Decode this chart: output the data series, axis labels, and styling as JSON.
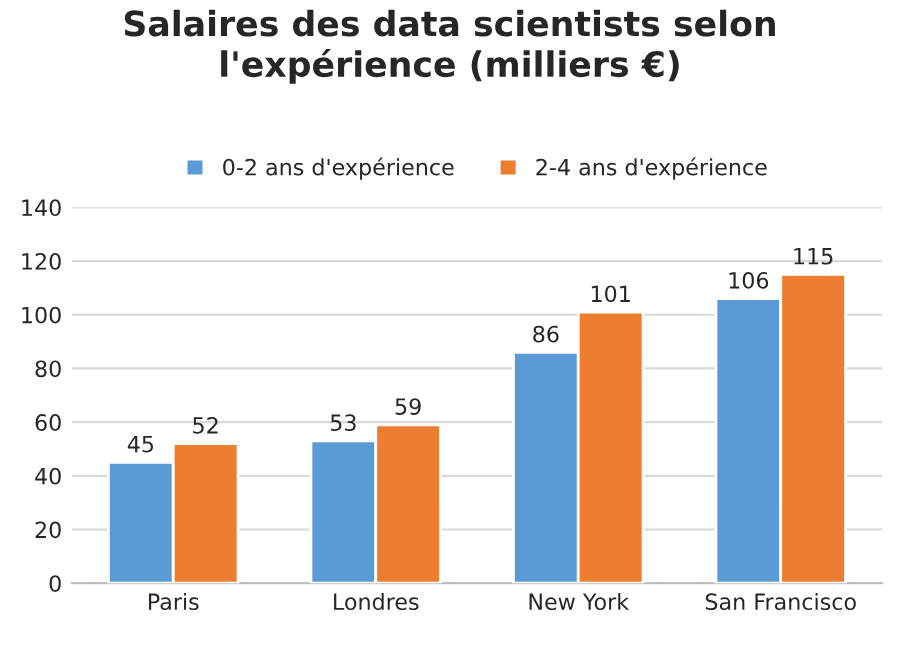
{
  "chart_data": {
    "type": "bar",
    "title": "Salaires des data scientists selon l'expérience (milliers €)",
    "categories": [
      "Paris",
      "Londres",
      "New York",
      "San Francisco"
    ],
    "series": [
      {
        "name": "0-2 ans d'expérience",
        "color": "#5b9bd5",
        "values": [
          45,
          53,
          86,
          106
        ]
      },
      {
        "name": "2-4 ans d'expérience",
        "color": "#ed7d31",
        "values": [
          52,
          59,
          101,
          115
        ]
      }
    ],
    "ylim": [
      0,
      140
    ],
    "yticks": [
      0,
      20,
      40,
      60,
      80,
      100,
      120,
      140
    ],
    "grid": "y",
    "legend": "top",
    "data_labels": true
  }
}
